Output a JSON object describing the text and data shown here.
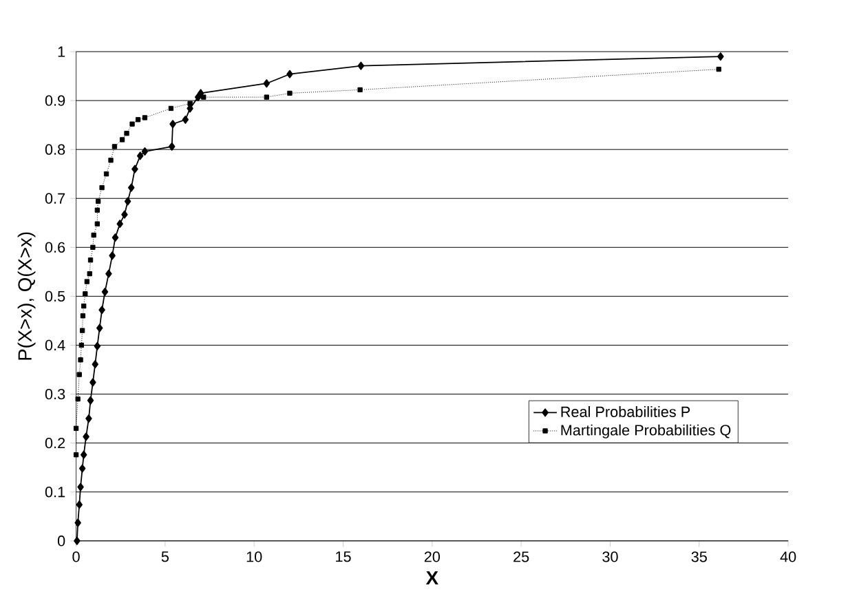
{
  "chart_data": {
    "type": "line",
    "xlabel": "X",
    "ylabel": "P(X>x), Q(X>x)",
    "xlim": [
      0,
      40
    ],
    "ylim": [
      0,
      1
    ],
    "xticks": [
      0,
      5,
      10,
      15,
      20,
      25,
      30,
      35,
      40
    ],
    "yticks": [
      0,
      0.1,
      0.2,
      0.3,
      0.4,
      0.5,
      0.6,
      0.7,
      0.8,
      0.9,
      1
    ],
    "grid": "y",
    "legend": "bottom right",
    "series": [
      {
        "name": "Real Probabilities P",
        "color": "#000000",
        "marker": "diamond",
        "line_style": "solid",
        "x": [
          0.05,
          0.1,
          0.18,
          0.25,
          0.35,
          0.43,
          0.56,
          0.71,
          0.81,
          0.94,
          1.07,
          1.19,
          1.32,
          1.45,
          1.62,
          1.83,
          2.03,
          2.2,
          2.46,
          2.72,
          2.9,
          3.1,
          3.3,
          3.6,
          3.86,
          5.38,
          5.43,
          6.14,
          6.4,
          6.85,
          7.0,
          10.7,
          12,
          16,
          36.2
        ],
        "values": [
          0.0,
          0.037,
          0.074,
          0.11,
          0.148,
          0.176,
          0.213,
          0.25,
          0.287,
          0.324,
          0.361,
          0.398,
          0.435,
          0.472,
          0.509,
          0.546,
          0.583,
          0.62,
          0.648,
          0.667,
          0.694,
          0.722,
          0.76,
          0.787,
          0.796,
          0.806,
          0.852,
          0.861,
          0.884,
          0.907,
          0.915,
          0.935,
          0.954,
          0.971,
          0.99
        ]
      },
      {
        "name": "Martingale Probabilities Q",
        "color": "#000000",
        "marker": "square",
        "line_style": "dotted",
        "x": [
          0,
          0,
          0.1,
          0.18,
          0.25,
          0.3,
          0.35,
          0.38,
          0.43,
          0.51,
          0.61,
          0.76,
          0.81,
          0.94,
          0.99,
          1.19,
          1.19,
          1.24,
          1.45,
          1.7,
          1.95,
          2.16,
          2.59,
          2.84,
          3.15,
          3.48,
          3.86,
          5.33,
          6.4,
          7.16,
          10.7,
          12,
          15.95,
          36.1
        ],
        "values": [
          0.176,
          0.23,
          0.29,
          0.34,
          0.37,
          0.4,
          0.43,
          0.46,
          0.48,
          0.505,
          0.53,
          0.546,
          0.574,
          0.6,
          0.625,
          0.648,
          0.676,
          0.694,
          0.722,
          0.75,
          0.778,
          0.806,
          0.82,
          0.833,
          0.852,
          0.861,
          0.865,
          0.884,
          0.894,
          0.907,
          0.907,
          0.915,
          0.922,
          0.964
        ]
      }
    ]
  }
}
